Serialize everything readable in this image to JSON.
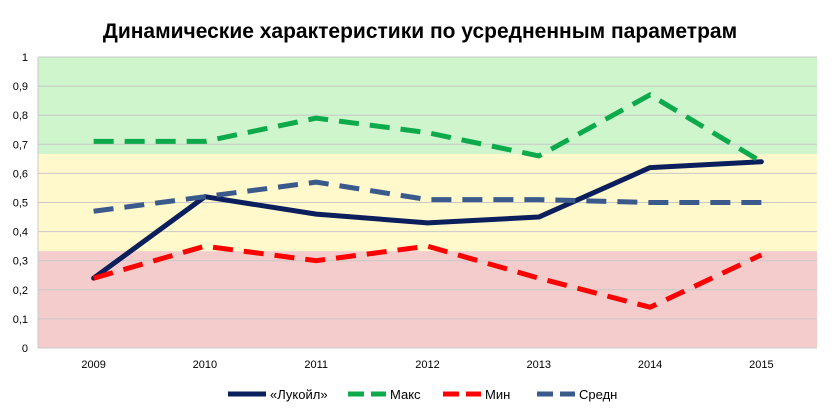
{
  "chart_data": {
    "type": "line",
    "title": "Динамические характеристики по усредненным параметрам",
    "xlabel": "",
    "ylabel": "",
    "x": [
      "2009",
      "2010",
      "2011",
      "2012",
      "2013",
      "2014",
      "2015"
    ],
    "ylim": [
      0,
      1
    ],
    "yticks": [
      "0",
      "0,1",
      "0,2",
      "0,3",
      "0,4",
      "0,5",
      "0,6",
      "0,7",
      "0,8",
      "0,9",
      "1"
    ],
    "yticks_values": [
      0,
      0.1,
      0.2,
      0.3,
      0.4,
      0.5,
      0.6,
      0.7,
      0.8,
      0.9,
      1
    ],
    "grid": true,
    "legend_position": "bottom",
    "background_bands": [
      {
        "from": 0,
        "to": 0.333,
        "color": "#f4cccc"
      },
      {
        "from": 0.333,
        "to": 0.667,
        "color": "#fff9cc"
      },
      {
        "from": 0.667,
        "to": 1,
        "color": "#cef5cc"
      }
    ],
    "series": [
      {
        "name": "«Лукойл»",
        "values": [
          0.24,
          0.52,
          0.46,
          0.43,
          0.45,
          0.62,
          0.64
        ],
        "color": "#0b1f5c",
        "dashed": false
      },
      {
        "name": "Макс",
        "values": [
          0.71,
          0.71,
          0.79,
          0.74,
          0.66,
          0.87,
          0.64
        ],
        "color": "#0daa4c",
        "dashed": true
      },
      {
        "name": "Мин",
        "values": [
          0.24,
          0.35,
          0.3,
          0.35,
          0.24,
          0.14,
          0.32
        ],
        "color": "#ff0000",
        "dashed": true
      },
      {
        "name": "Средн",
        "values": [
          0.47,
          0.52,
          0.57,
          0.51,
          0.51,
          0.5,
          0.5
        ],
        "color": "#3a5a8c",
        "dashed": true
      }
    ]
  }
}
